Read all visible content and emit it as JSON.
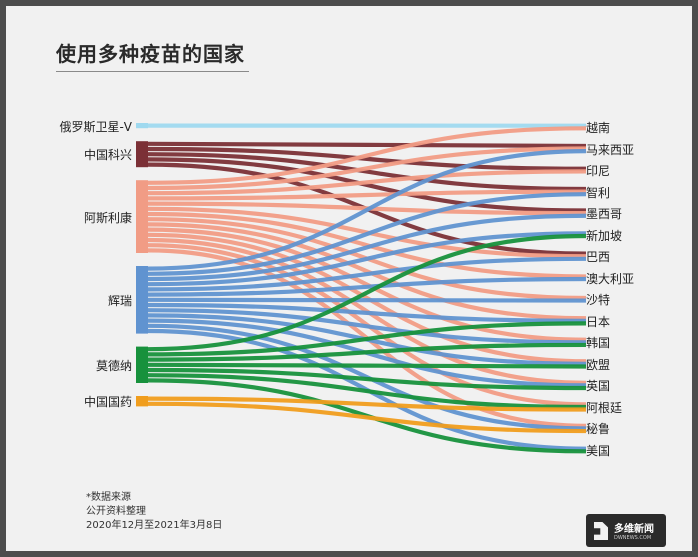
{
  "title": "使用多种疫苗的国家",
  "colors": {
    "俄罗斯卫星-V": "#9fd9ef",
    "中国科兴": "#7b3036",
    "阿斯利康": "#f19c85",
    "辉瑞": "#6093d0",
    "莫德纳": "#17913c",
    "中国国药": "#f09d1d"
  },
  "chart_data": {
    "type": "sankey",
    "sources": [
      "俄罗斯卫星-V",
      "中国科兴",
      "阿斯利康",
      "辉瑞",
      "莫德纳",
      "中国国药"
    ],
    "targets": [
      "越南",
      "马来西亚",
      "印尼",
      "智利",
      "墨西哥",
      "新加坡",
      "巴西",
      "澳大利亚",
      "沙特",
      "日本",
      "韩国",
      "欧盟",
      "英国",
      "阿根廷",
      "秘鲁",
      "美国"
    ],
    "links": [
      {
        "source": "俄罗斯卫星-V",
        "target": "越南"
      },
      {
        "source": "中国科兴",
        "target": "马来西亚"
      },
      {
        "source": "中国科兴",
        "target": "印尼"
      },
      {
        "source": "中国科兴",
        "target": "智利"
      },
      {
        "source": "中国科兴",
        "target": "墨西哥"
      },
      {
        "source": "中国科兴",
        "target": "巴西"
      },
      {
        "source": "阿斯利康",
        "target": "越南"
      },
      {
        "source": "阿斯利康",
        "target": "马来西亚"
      },
      {
        "source": "阿斯利康",
        "target": "印尼"
      },
      {
        "source": "阿斯利康",
        "target": "智利"
      },
      {
        "source": "阿斯利康",
        "target": "墨西哥"
      },
      {
        "source": "阿斯利康",
        "target": "巴西"
      },
      {
        "source": "阿斯利康",
        "target": "澳大利亚"
      },
      {
        "source": "阿斯利康",
        "target": "沙特"
      },
      {
        "source": "阿斯利康",
        "target": "日本"
      },
      {
        "source": "阿斯利康",
        "target": "韩国"
      },
      {
        "source": "阿斯利康",
        "target": "欧盟"
      },
      {
        "source": "阿斯利康",
        "target": "英国"
      },
      {
        "source": "阿斯利康",
        "target": "阿根廷"
      },
      {
        "source": "阿斯利康",
        "target": "秘鲁"
      },
      {
        "source": "辉瑞",
        "target": "马来西亚"
      },
      {
        "source": "辉瑞",
        "target": "智利"
      },
      {
        "source": "辉瑞",
        "target": "墨西哥"
      },
      {
        "source": "辉瑞",
        "target": "新加坡"
      },
      {
        "source": "辉瑞",
        "target": "巴西"
      },
      {
        "source": "辉瑞",
        "target": "澳大利亚"
      },
      {
        "source": "辉瑞",
        "target": "沙特"
      },
      {
        "source": "辉瑞",
        "target": "日本"
      },
      {
        "source": "辉瑞",
        "target": "韩国"
      },
      {
        "source": "辉瑞",
        "target": "欧盟"
      },
      {
        "source": "辉瑞",
        "target": "英国"
      },
      {
        "source": "辉瑞",
        "target": "秘鲁"
      },
      {
        "source": "辉瑞",
        "target": "美国"
      },
      {
        "source": "莫德纳",
        "target": "新加坡"
      },
      {
        "source": "莫德纳",
        "target": "日本"
      },
      {
        "source": "莫德纳",
        "target": "韩国"
      },
      {
        "source": "莫德纳",
        "target": "欧盟"
      },
      {
        "source": "莫德纳",
        "target": "英国"
      },
      {
        "source": "莫德纳",
        "target": "阿根廷"
      },
      {
        "source": "莫德纳",
        "target": "美国"
      },
      {
        "source": "中国国药",
        "target": "阿根廷"
      },
      {
        "source": "中国国药",
        "target": "秘鲁"
      }
    ]
  },
  "footnote": {
    "line1": "*数据来源",
    "line2": "公开资料整理",
    "line3": "2020年12月至2021年3月8日"
  },
  "logo": {
    "name": "多维新闻",
    "url": "DWNEWS.COM"
  }
}
